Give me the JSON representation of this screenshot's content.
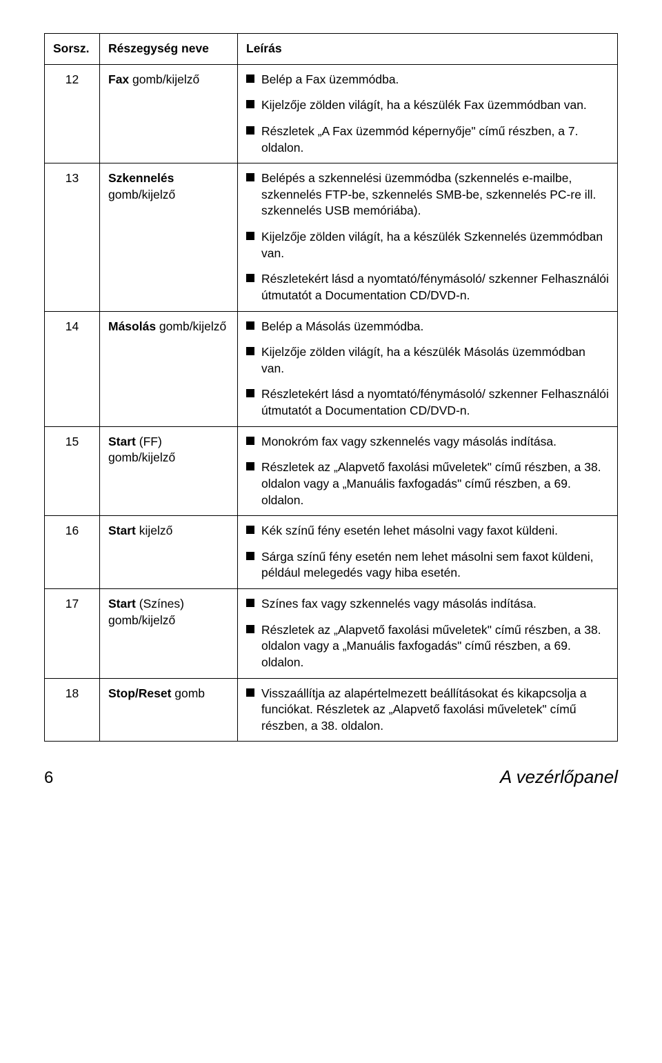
{
  "table": {
    "headers": [
      "Sorsz.",
      "Részegység neve",
      "Leírás"
    ],
    "rows": [
      {
        "num": "12",
        "name_pre": "Fax",
        "name_post": " gomb/kijelző",
        "bullets": [
          "Belép a Fax üzemmódba.",
          "Kijelzője zölden világít, ha a készülék Fax üzemmódban van.",
          "Részletek „A Fax üzemmód képernyője\" című részben, a 7. oldalon."
        ]
      },
      {
        "num": "13",
        "name_pre": "Szkennelés",
        "name_post": " gomb/kijelző",
        "bullets": [
          "Belépés a szkennelési üzemmódba (szkennelés e-mailbe, szkennelés FTP-be, szkennelés SMB-be, szkennelés PC-re ill. szkennelés USB memóriába).",
          "Kijelzője zölden világít, ha a készülék Szkennelés üzemmódban van.",
          "Részletekért lásd a nyomtató/fénymásoló/ szkenner Felhasználói útmutatót a Documentation CD/DVD-n."
        ]
      },
      {
        "num": "14",
        "name_pre": "Másolás",
        "name_post": " gomb/kijelző",
        "bullets": [
          "Belép a Másolás üzemmódba.",
          "Kijelzője zölden világít, ha a készülék Másolás üzemmódban van.",
          "Részletekért lásd a nyomtató/fénymásoló/ szkenner Felhasználói útmutatót a Documentation CD/DVD-n."
        ]
      },
      {
        "num": "15",
        "name_pre": "Start",
        "name_post": " (FF) gomb/kijelző",
        "bullets": [
          "Monokróm fax vagy szkennelés vagy másolás indítása.",
          "Részletek az „Alapvető faxolási műveletek\" című részben, a 38. oldalon vagy a „Manuális faxfogadás\" című részben, a 69. oldalon."
        ]
      },
      {
        "num": "16",
        "name_pre": "Start",
        "name_post": " kijelző",
        "bullets": [
          "Kék színű fény esetén lehet másolni vagy faxot küldeni.",
          "Sárga színű fény esetén nem lehet másolni sem faxot küldeni, például melegedés vagy hiba esetén."
        ]
      },
      {
        "num": "17",
        "name_pre": "Start",
        "name_post": " (Színes) gomb/kijelző",
        "bullets": [
          "Színes fax vagy szkennelés vagy másolás indítása.",
          "Részletek az „Alapvető faxolási műveletek\" című részben, a 38. oldalon vagy a „Manuális faxfogadás\" című részben, a 69. oldalon."
        ]
      },
      {
        "num": "18",
        "name_pre": "Stop/Reset",
        "name_post": " gomb",
        "bullets": [
          "Visszaállítja az alapértelmezett beállításokat és kikapcsolja a funciókat. Részletek az „Alapvető faxolási műveletek\" című részben, a 38. oldalon."
        ]
      }
    ]
  },
  "footer": {
    "page_number": "6",
    "chapter_title": "A vezérlőpanel"
  }
}
